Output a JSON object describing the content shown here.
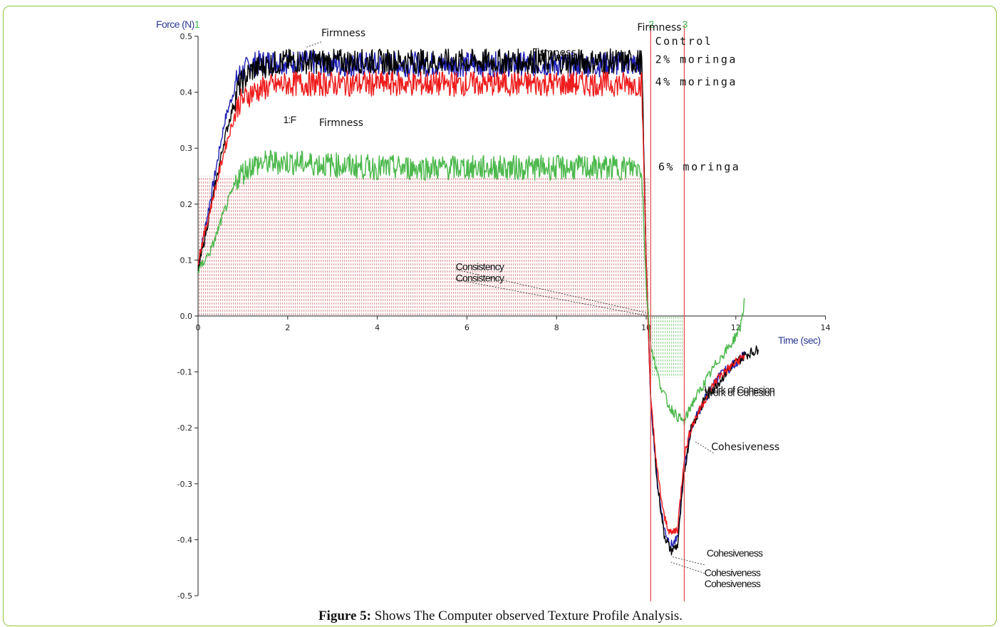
{
  "colors": {
    "control": "#000000",
    "moringa2": "#1f1fb4",
    "moringa4": "#ee1c1c",
    "moringa6": "#4cb84c",
    "axis_title": "#2b3990",
    "marker_line": "#e25050",
    "marker_label": "#39b54a",
    "frame": "#8cc63f",
    "hatch": "#c0504d"
  },
  "chart_data": {
    "type": "line",
    "xlabel": "Time (sec)",
    "ylabel": "Force (N)",
    "ylabel_suffix": "1",
    "xlim": [
      0,
      14
    ],
    "ylim": [
      -0.5,
      0.5
    ],
    "x_ticks": [
      0,
      2,
      4,
      6,
      8,
      10,
      12,
      14
    ],
    "y_ticks": [
      0.5,
      0.4,
      0.3,
      0.2,
      0.1,
      0.0,
      -0.1,
      -0.2,
      -0.3,
      -0.4,
      -0.5
    ],
    "y_tick_labels": [
      "0.5",
      "0.4",
      "0.3",
      "0.2",
      "0.1",
      "0.0",
      "-0.1",
      "-0.2",
      "-0.3",
      "-0.4",
      "-0.5"
    ],
    "grid": false,
    "markers": [
      {
        "label": "2",
        "x": 10.1
      },
      {
        "label": "3",
        "x": 10.85
      }
    ],
    "series": [
      {
        "name": "Control",
        "x": [
          0,
          0.3,
          0.6,
          0.9,
          1.2,
          1.6,
          2,
          3,
          4,
          5,
          6,
          7,
          8,
          9,
          9.9,
          10.0,
          10.1,
          10.25,
          10.4,
          10.55,
          10.7,
          10.85,
          11.0,
          11.3,
          11.6,
          11.9,
          12.2,
          12.5
        ],
        "y": [
          0.08,
          0.2,
          0.32,
          0.41,
          0.44,
          0.45,
          0.455,
          0.455,
          0.455,
          0.455,
          0.455,
          0.455,
          0.455,
          0.455,
          0.455,
          0.1,
          -0.15,
          -0.3,
          -0.39,
          -0.42,
          -0.41,
          -0.28,
          -0.2,
          -0.15,
          -0.12,
          -0.09,
          -0.07,
          -0.06
        ]
      },
      {
        "name": "2% moringa",
        "x": [
          0,
          0.3,
          0.6,
          0.9,
          1.2,
          1.6,
          2,
          3,
          4,
          5,
          6,
          7,
          8,
          9,
          9.9,
          10.0,
          10.1,
          10.25,
          10.4,
          10.55,
          10.7,
          10.85,
          11.0,
          11.3,
          11.6,
          11.9,
          12.2
        ],
        "y": [
          0.09,
          0.22,
          0.35,
          0.43,
          0.45,
          0.455,
          0.455,
          0.45,
          0.45,
          0.45,
          0.45,
          0.45,
          0.45,
          0.45,
          0.45,
          0.1,
          -0.15,
          -0.3,
          -0.38,
          -0.41,
          -0.4,
          -0.27,
          -0.2,
          -0.15,
          -0.11,
          -0.09,
          -0.07
        ]
      },
      {
        "name": "4% moringa",
        "x": [
          0,
          0.3,
          0.6,
          0.9,
          1.2,
          1.6,
          2,
          3,
          4,
          5,
          6,
          7,
          8,
          9,
          9.9,
          10.0,
          10.1,
          10.25,
          10.4,
          10.55,
          10.7,
          10.85,
          11.0,
          11.3,
          11.6,
          11.9,
          12.2
        ],
        "y": [
          0.1,
          0.2,
          0.3,
          0.38,
          0.4,
          0.41,
          0.415,
          0.415,
          0.415,
          0.415,
          0.415,
          0.415,
          0.415,
          0.415,
          0.415,
          0.1,
          -0.15,
          -0.28,
          -0.36,
          -0.39,
          -0.38,
          -0.25,
          -0.2,
          -0.15,
          -0.11,
          -0.09,
          -0.07
        ]
      },
      {
        "name": "6% moringa",
        "x": [
          0,
          0.3,
          0.6,
          0.9,
          1.2,
          1.6,
          2,
          3,
          4,
          5,
          6,
          7,
          8,
          9,
          9.9,
          10.0,
          10.1,
          10.3,
          10.5,
          10.7,
          10.85,
          11.0,
          11.3,
          11.6,
          11.9,
          12.1,
          12.2
        ],
        "y": [
          0.08,
          0.12,
          0.19,
          0.25,
          0.27,
          0.275,
          0.275,
          0.27,
          0.265,
          0.265,
          0.265,
          0.265,
          0.265,
          0.265,
          0.265,
          0.05,
          -0.05,
          -0.12,
          -0.16,
          -0.18,
          -0.19,
          -0.16,
          -0.12,
          -0.08,
          -0.05,
          -0.02,
          0.03
        ]
      }
    ],
    "annotations": [
      {
        "text": "Firmness",
        "x": 2.75,
        "y": 0.5
      },
      {
        "text": "Firmness",
        "x": 9.8,
        "y": 0.51
      },
      {
        "text": "Firmness",
        "x": 7.45,
        "y": 0.465
      },
      {
        "text": "Firmness",
        "x": 2.7,
        "y": 0.34
      },
      {
        "text": "1:F",
        "x": 1.9,
        "y": 0.345
      },
      {
        "text": "Consistency",
        "x": 5.75,
        "y": 0.082
      },
      {
        "text": "Consistency",
        "x": 5.75,
        "y": 0.062
      },
      {
        "text": "Work of Cohesion",
        "x": 11.3,
        "y": -0.138
      },
      {
        "text": "Work of Cohesion",
        "x": 11.3,
        "y": -0.143
      },
      {
        "text": "Cohesiveness",
        "x": 11.45,
        "y": -0.24
      },
      {
        "text": "Cohesiveness",
        "x": 11.35,
        "y": -0.43
      },
      {
        "text": "Cohesiveness",
        "x": 11.3,
        "y": -0.465
      },
      {
        "text": "Cohesiveness",
        "x": 11.3,
        "y": -0.485
      }
    ],
    "legend_labels": [
      "Control",
      "2% moringa",
      "4% moringa",
      "6% moringa"
    ]
  },
  "caption": {
    "bold": "Figure 5:",
    "text": " Shows The Computer observed Texture Profile Analysis."
  }
}
